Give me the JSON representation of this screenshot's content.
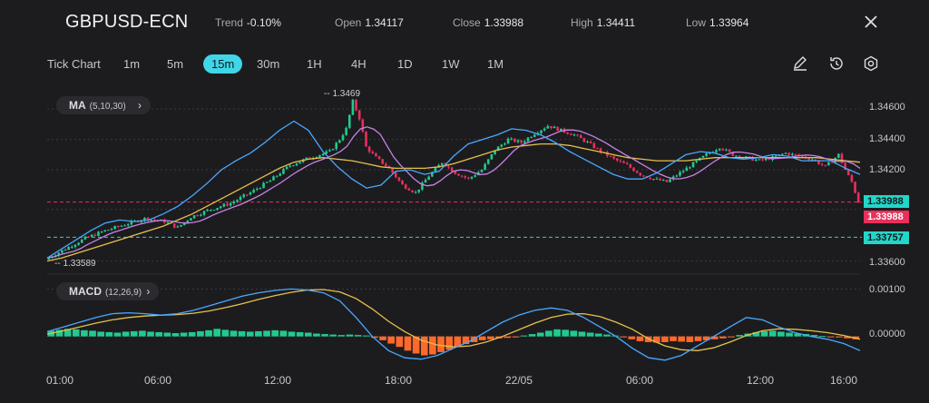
{
  "header": {
    "symbol": "GBPUSD-ECN",
    "trend_label": "Trend",
    "trend_value": "-0.10%",
    "open_label": "Open",
    "open_value": "1.34117",
    "close_label": "Close",
    "close_value": "1.33988",
    "high_label": "High",
    "high_value": "1.34411",
    "low_label": "Low",
    "low_value": "1.33964"
  },
  "timeframes": {
    "tick": "Tick Chart",
    "m1": "1m",
    "m5": "5m",
    "m15": "15m",
    "m30": "30m",
    "h1": "1H",
    "h4": "4H",
    "d1": "1D",
    "w1": "1W",
    "mn": "1M",
    "active": "15m"
  },
  "tools": {
    "draw": "pencil-icon",
    "history": "clock-rewind-icon",
    "settings": "hexagon-gear-icon",
    "close": "close-icon"
  },
  "indicators": {
    "ma": {
      "name": "MA",
      "params": "(5,10,30)"
    },
    "macd": {
      "name": "MACD",
      "params": "(12,26,9)"
    }
  },
  "colors": {
    "up": "#22c98f",
    "down": "#e8305a",
    "accent": "#3fd6e8",
    "ma5": "#4aa8ff",
    "ma10": "#c982e6",
    "ma30": "#e7c04a",
    "hist_up": "#22c98f",
    "hist_down": "#ff6a2a"
  },
  "chart_data": [
    {
      "type": "candlestick",
      "title": "GBPUSD-ECN 15m",
      "y_ticks": [
        "1.34600",
        "1.34400",
        "1.34200",
        "1.33600"
      ],
      "ylim": [
        1.3355,
        1.3472
      ],
      "x_ticks": [
        "01:00",
        "06:00",
        "12:00",
        "18:00",
        "22/05",
        "06:00",
        "12:00",
        "16:00"
      ],
      "annotations": {
        "high_marker": "1.3469",
        "low_marker": "1.33589"
      },
      "price_tags": {
        "bid": "1.33988",
        "ask": "1.33988",
        "line": "1.33757"
      },
      "series_path": [
        [
          0,
          1.3361
        ],
        [
          6,
          1.3368
        ],
        [
          12,
          1.3375
        ],
        [
          18,
          1.338
        ],
        [
          24,
          1.3384
        ],
        [
          30,
          1.3388
        ],
        [
          36,
          1.3386
        ],
        [
          40,
          1.3382
        ],
        [
          44,
          1.3389
        ],
        [
          50,
          1.3394
        ],
        [
          56,
          1.3398
        ],
        [
          62,
          1.3405
        ],
        [
          68,
          1.3413
        ],
        [
          74,
          1.3423
        ],
        [
          80,
          1.3428
        ],
        [
          86,
          1.3432
        ],
        [
          89,
          1.344
        ],
        [
          91,
          1.3447
        ],
        [
          93,
          1.3465
        ],
        [
          95,
          1.3454
        ],
        [
          97,
          1.3435
        ],
        [
          100,
          1.3428
        ],
        [
          104,
          1.3421
        ],
        [
          108,
          1.341
        ],
        [
          112,
          1.3405
        ],
        [
          116,
          1.3416
        ],
        [
          120,
          1.3425
        ],
        [
          124,
          1.3418
        ],
        [
          128,
          1.3414
        ],
        [
          132,
          1.342
        ],
        [
          136,
          1.3433
        ],
        [
          140,
          1.344
        ],
        [
          144,
          1.3438
        ],
        [
          148,
          1.3444
        ],
        [
          152,
          1.3449
        ],
        [
          156,
          1.3446
        ],
        [
          160,
          1.3443
        ],
        [
          164,
          1.3438
        ],
        [
          168,
          1.3432
        ],
        [
          172,
          1.3427
        ],
        [
          176,
          1.3423
        ],
        [
          180,
          1.3417
        ],
        [
          184,
          1.3414
        ],
        [
          188,
          1.3412
        ],
        [
          192,
          1.3418
        ],
        [
          196,
          1.3424
        ],
        [
          200,
          1.343
        ],
        [
          204,
          1.3435
        ],
        [
          208,
          1.343
        ],
        [
          212,
          1.3428
        ],
        [
          216,
          1.3426
        ],
        [
          220,
          1.3428
        ],
        [
          224,
          1.3431
        ],
        [
          228,
          1.3429
        ],
        [
          232,
          1.3427
        ],
        [
          236,
          1.3422
        ],
        [
          240,
          1.343
        ],
        [
          242,
          1.342
        ],
        [
          244,
          1.3412
        ],
        [
          246,
          1.3399
        ]
      ],
      "ma5": [
        1.3362,
        1.3368,
        1.3374,
        1.338,
        1.3385,
        1.3387,
        1.3386,
        1.3387,
        1.3391,
        1.3396,
        1.3403,
        1.3411,
        1.342,
        1.3426,
        1.3431,
        1.3438,
        1.3446,
        1.3452,
        1.3446,
        1.3432,
        1.3422,
        1.3414,
        1.3408,
        1.341,
        1.3419,
        1.342,
        1.3417,
        1.3419,
        1.3429,
        1.3437,
        1.344,
        1.3443,
        1.3447,
        1.3446,
        1.3443,
        1.3438,
        1.3432,
        1.3427,
        1.3422,
        1.3417,
        1.3414,
        1.3414,
        1.3418,
        1.3424,
        1.343,
        1.3432,
        1.3431,
        1.3428,
        1.3427,
        1.3428,
        1.343,
        1.3429,
        1.3426,
        1.3426,
        1.3426,
        1.3421,
        1.3417
      ],
      "ma30": [
        1.336,
        1.3362,
        1.3365,
        1.3368,
        1.3371,
        1.3374,
        1.3377,
        1.338,
        1.3383,
        1.3387,
        1.3391,
        1.3396,
        1.3401,
        1.3406,
        1.3411,
        1.3416,
        1.3421,
        1.3425,
        1.3427,
        1.3428,
        1.3427,
        1.3426,
        1.3424,
        1.3422,
        1.3421,
        1.3421,
        1.3421,
        1.3422,
        1.3424,
        1.3427,
        1.343,
        1.3433,
        1.3435,
        1.3436,
        1.3437,
        1.3437,
        1.3436,
        1.3434,
        1.3432,
        1.343,
        1.3428,
        1.3427,
        1.3426,
        1.3426,
        1.3426,
        1.3427,
        1.3428,
        1.3428,
        1.3428,
        1.3428,
        1.3428,
        1.3428,
        1.3428,
        1.3428,
        1.3427,
        1.3426,
        1.3425
      ]
    },
    {
      "type": "macd",
      "y_ticks": [
        "0.00100",
        "0.00000"
      ],
      "ylim": [
        -0.0006,
        0.0012
      ],
      "histogram": [
        0.00012,
        0.00014,
        0.00016,
        0.00015,
        0.00013,
        0.00012,
        0.0001,
        9e-05,
        8e-05,
        0.0001,
        0.00011,
        0.00012,
        0.0001,
        9e-05,
        8e-05,
        7e-05,
        8e-05,
        9e-05,
        0.00011,
        0.00013,
        0.00016,
        0.00014,
        0.00012,
        0.00011,
        0.0001,
        0.00011,
        0.00012,
        0.00013,
        0.00012,
        0.0001,
        9e-05,
        8e-05,
        6e-05,
        5e-05,
        4e-05,
        3e-05,
        4e-05,
        3e-05,
        2e-05,
        -3e-05,
        -8e-05,
        -0.00015,
        -0.00022,
        -0.0003,
        -0.00036,
        -0.0004,
        -0.00038,
        -0.00033,
        -0.00028,
        -0.00022,
        -0.00016,
        -0.00012,
        -8e-05,
        -6e-05,
        -4e-05,
        -3e-05,
        -2e-05,
        2e-05,
        5e-05,
        8e-05,
        0.00012,
        0.00015,
        0.00014,
        0.00012,
        0.0001,
        8e-05,
        6e-05,
        4e-05,
        2e-05,
        -2e-05,
        -6e-05,
        -0.0001,
        -0.00012,
        -0.00013,
        -0.00012,
        -0.0001,
        -0.00011,
        -0.00012,
        -0.0001,
        -8e-05,
        -6e-05,
        -4e-05,
        -2e-05,
        3e-05,
        6e-05,
        9e-05,
        0.00011,
        0.00012,
        0.0001,
        8e-05,
        6e-05,
        5e-05,
        3e-05,
        1e-05,
        -1e-05,
        -2e-05,
        -4e-05,
        -6e-05
      ],
      "macd_line": [
        0.0001,
        0.0002,
        0.0003,
        0.0004,
        0.00048,
        0.0005,
        0.00048,
        0.00045,
        0.00048,
        0.00055,
        0.00065,
        0.00075,
        0.00085,
        0.00092,
        0.00097,
        0.001,
        0.00098,
        0.00092,
        0.00075,
        0.0004,
        0.0,
        -0.0003,
        -0.00045,
        -0.00048,
        -0.0004,
        -0.00025,
        -0.0001,
        0.0001,
        0.0003,
        0.00045,
        0.00055,
        0.0006,
        0.00055,
        0.0004,
        0.0002,
        0.0,
        -0.00025,
        -0.00045,
        -0.0005,
        -0.0004,
        -0.0002,
        0.0,
        0.0002,
        0.0004,
        0.00035,
        0.0002,
        8e-05,
        0.0,
        -6e-05,
        -0.00015,
        -0.0003
      ],
      "signal_line": [
        5e-05,
        0.00012,
        0.0002,
        0.00028,
        0.00035,
        0.0004,
        0.00043,
        0.00045,
        0.00046,
        0.00049,
        0.00054,
        0.00061,
        0.00069,
        0.00078,
        0.00086,
        0.00093,
        0.00098,
        0.00099,
        0.00094,
        0.0008,
        0.00058,
        0.00032,
        0.0001,
        -8e-05,
        -0.00018,
        -0.00022,
        -0.0002,
        -0.00012,
        0.0,
        0.00014,
        0.00028,
        0.0004,
        0.00047,
        0.00048,
        0.00042,
        0.0003,
        0.00015,
        -5e-05,
        -0.0002,
        -0.00028,
        -0.0003,
        -0.00024,
        -0.00012,
        2e-05,
        0.00012,
        0.00016,
        0.00015,
        0.00012,
        8e-05,
        2e-05,
        -6e-05
      ]
    }
  ]
}
